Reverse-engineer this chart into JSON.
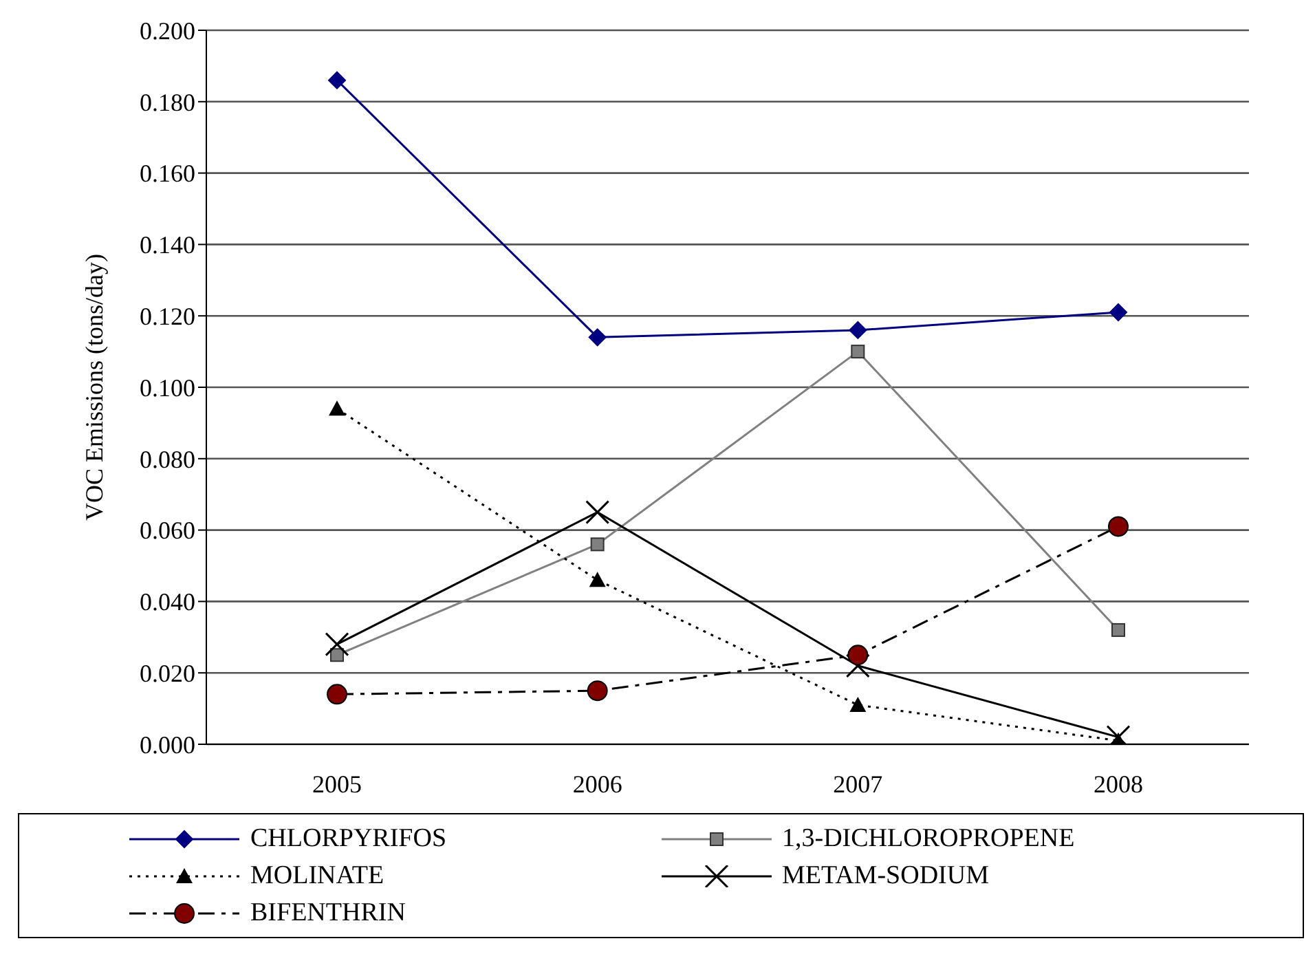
{
  "chart_data": {
    "type": "line",
    "ylabel": "VOC Emissions (tons/day)",
    "categories": [
      "2005",
      "2006",
      "2007",
      "2008"
    ],
    "series": [
      {
        "name": "CHLORPYRIFOS",
        "color": "#000080",
        "marker": "diamond",
        "line_style": "solid",
        "values": [
          0.186,
          0.114,
          0.116,
          0.121
        ]
      },
      {
        "name": "1,3-DICHLOROPROPENE",
        "color": "#808080",
        "marker": "square",
        "line_style": "solid",
        "values": [
          0.025,
          0.056,
          0.11,
          0.032
        ]
      },
      {
        "name": "MOLINATE",
        "color": "#000000",
        "marker": "triangle",
        "line_style": "dotted",
        "values": [
          0.094,
          0.046,
          0.011,
          0.001
        ]
      },
      {
        "name": "METAM-SODIUM",
        "color": "#000000",
        "marker": "cross",
        "line_style": "solid",
        "values": [
          0.028,
          0.065,
          0.022,
          0.002
        ]
      },
      {
        "name": "BIFENTHRIN",
        "color": "#800000",
        "marker": "circle",
        "line_style": "dashdot",
        "values": [
          0.014,
          0.015,
          0.025,
          0.061
        ]
      }
    ],
    "ylim": [
      0,
      0.2
    ],
    "yticks": [
      {
        "value": 0,
        "label": "0.000"
      },
      {
        "value": 0.02,
        "label": "0.020"
      },
      {
        "value": 0.04,
        "label": "0.040"
      },
      {
        "value": 0.06,
        "label": "0.060"
      },
      {
        "value": 0.08,
        "label": "0.080"
      },
      {
        "value": 0.1,
        "label": "0.100"
      },
      {
        "value": 0.12,
        "label": "0.120"
      },
      {
        "value": 0.14,
        "label": "0.140"
      },
      {
        "value": 0.16,
        "label": "0.160"
      },
      {
        "value": 0.18,
        "label": "0.180"
      },
      {
        "value": 0.2,
        "label": "0.200"
      }
    ],
    "grid": "y",
    "legend": "bottom"
  }
}
